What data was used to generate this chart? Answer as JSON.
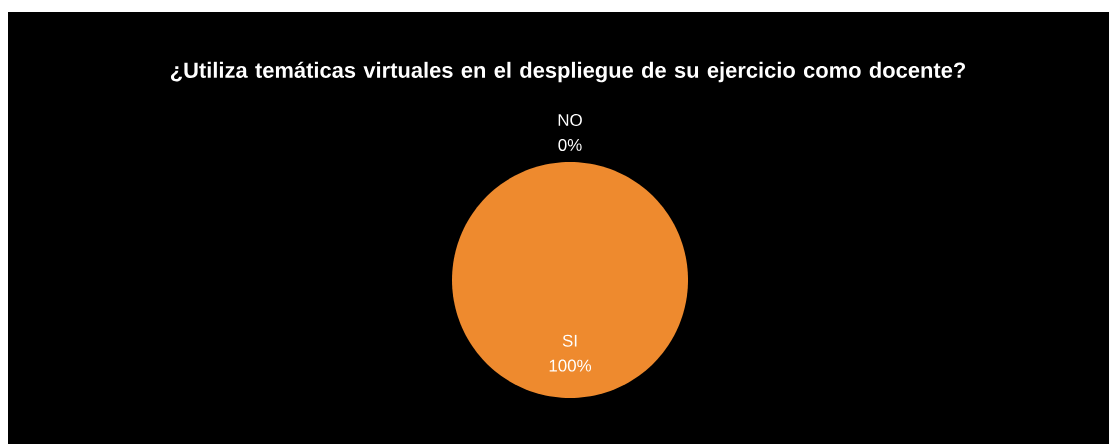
{
  "chart_data": {
    "type": "pie",
    "title": "¿Utiliza temáticas virtuales en el despliegue de su ejercicio como docente?",
    "categories": [
      "SI",
      "NO"
    ],
    "values": [
      100,
      0
    ],
    "value_labels": [
      "100%",
      "0%"
    ],
    "colors": [
      "#ee8a2e",
      "#4f81bd"
    ]
  }
}
